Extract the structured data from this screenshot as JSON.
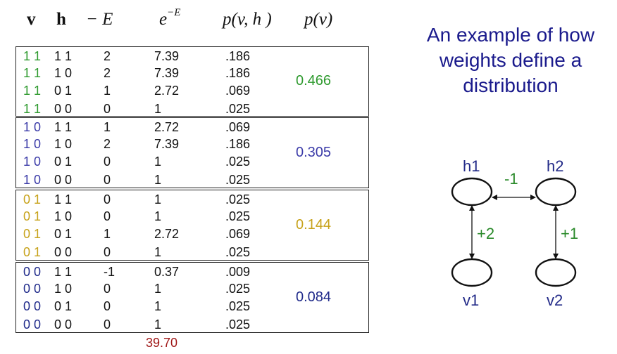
{
  "headers": {
    "v": "v",
    "h": "h",
    "negE": "− E",
    "expE_base": "e",
    "expE_sup": "−E",
    "pvh": "p(v, h )",
    "pv": "p(v)"
  },
  "colors": {
    "green": "#2e9a2e",
    "blue": "#3a3aa8",
    "gold": "#c7a21a",
    "navy": "#1f2a8a",
    "title": "#1a1a8c",
    "weight": "#2a8a2a",
    "total": "#a01818"
  },
  "groups": [
    {
      "v_color": "green",
      "marginal": "0.466",
      "rows": [
        {
          "v": "1 1",
          "h": "1 1",
          "negE": "2",
          "expE": "7.39",
          "p": ".186"
        },
        {
          "v": "1 1",
          "h": "1 0",
          "negE": "2",
          "expE": "7.39",
          "p": ".186"
        },
        {
          "v": "1 1",
          "h": "0 1",
          "negE": "1",
          "expE": "2.72",
          "p": ".069"
        },
        {
          "v": "1 1",
          "h": "0 0",
          "negE": "0",
          "expE": "1",
          "p": ".025"
        }
      ]
    },
    {
      "v_color": "blue",
      "marginal": "0.305",
      "rows": [
        {
          "v": "1 0",
          "h": "1 1",
          "negE": "1",
          "expE": "2.72",
          "p": ".069"
        },
        {
          "v": "1 0",
          "h": "1 0",
          "negE": "2",
          "expE": "7.39",
          "p": ".186"
        },
        {
          "v": "1 0",
          "h": "0 1",
          "negE": "0",
          "expE": "1",
          "p": ".025"
        },
        {
          "v": "1 0",
          "h": "0 0",
          "negE": "0",
          "expE": "1",
          "p": ".025"
        }
      ]
    },
    {
      "v_color": "gold",
      "marginal": "0.144",
      "rows": [
        {
          "v": "0 1",
          "h": "1 1",
          "negE": "0",
          "expE": "1",
          "p": ".025"
        },
        {
          "v": "0 1",
          "h": "1 0",
          "negE": "0",
          "expE": "1",
          "p": ".025"
        },
        {
          "v": "0 1",
          "h": "0 1",
          "negE": "1",
          "expE": "2.72",
          "p": ".069"
        },
        {
          "v": "0 1",
          "h": "0 0",
          "negE": "0",
          "expE": "1",
          "p": ".025"
        }
      ]
    },
    {
      "v_color": "navy",
      "marginal": "0.084",
      "rows": [
        {
          "v": "0 0",
          "h": "1 1",
          "negE": "-1",
          "expE": "0.37",
          "p": ".009"
        },
        {
          "v": "0 0",
          "h": "1 0",
          "negE": "0",
          "expE": "1",
          "p": ".025"
        },
        {
          "v": "0 0",
          "h": "0 1",
          "negE": "0",
          "expE": "1",
          "p": ".025"
        },
        {
          "v": "0 0",
          "h": "0 0",
          "negE": "0",
          "expE": "1",
          "p": ".025"
        }
      ]
    }
  ],
  "total": "39.70",
  "title": "An example of how weights define a distribution",
  "network": {
    "nodes": [
      "h1",
      "h2",
      "v1",
      "v2"
    ],
    "weights": {
      "h1_h2": "-1",
      "h1_v1": "+2",
      "h2_v2": "+1"
    }
  }
}
